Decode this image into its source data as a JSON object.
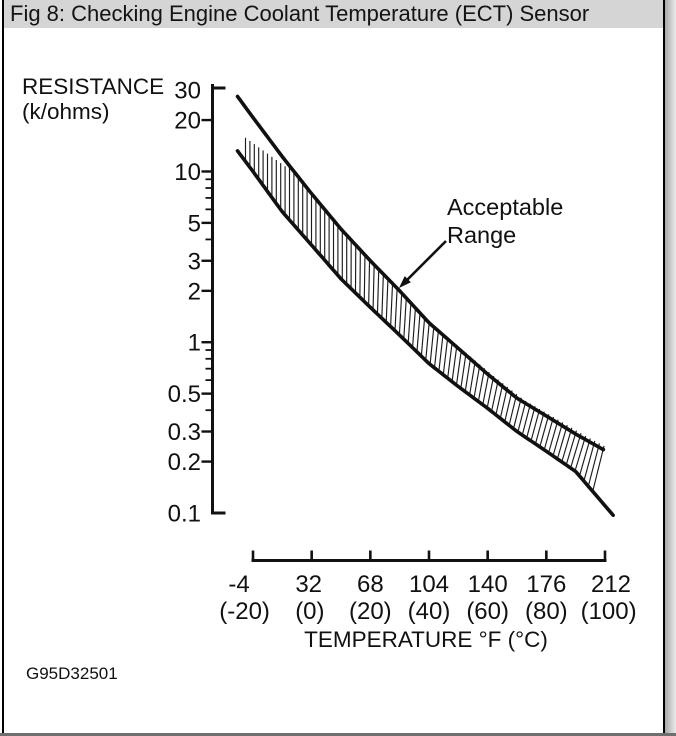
{
  "window": {
    "title": "Fig 8: Checking Engine Coolant Temperature (ECT) Sensor"
  },
  "figure_code": "G95D32501",
  "colors": {
    "ink": "#111111",
    "title_bar_bg": "#d5d5d5"
  },
  "chart": {
    "y_axis_label_line1": "RESISTANCE",
    "y_axis_label_line2": "(k/ohms)",
    "x_axis_label": "TEMPERATURE °F (°C)",
    "annotation": {
      "line1": "Acceptable",
      "line2": "Range"
    }
  },
  "chart_data": {
    "type": "area",
    "title": "ECT sensor resistance vs temperature (acceptable range band)",
    "xlabel": "TEMPERATURE °F (°C)",
    "ylabel": "RESISTANCE (k/ohms)",
    "x_scale": "linear",
    "y_scale": "log",
    "xlim_f": [
      -4,
      212
    ],
    "ylim": [
      0.1,
      30
    ],
    "grid": false,
    "x_tick_values_f": [
      -4,
      32,
      68,
      104,
      140,
      176,
      212
    ],
    "x_tick_labels_f": [
      "-4",
      "32",
      "68",
      "104",
      "140",
      "176",
      "212"
    ],
    "x_tick_labels_c": [
      "(-20)",
      "(0)",
      "(20)",
      "(40)",
      "(60)",
      "(80)",
      "(100)"
    ],
    "y_tick_values": [
      30,
      20,
      10,
      5,
      3,
      2,
      1,
      0.5,
      0.3,
      0.2,
      0.1
    ],
    "y_tick_labels": [
      "30",
      "20",
      "10",
      "5",
      "3",
      "2",
      "1",
      "0.5",
      "0.3",
      "0.2",
      "0.1"
    ],
    "y_minor_tick_values": [
      9,
      8,
      7,
      6,
      4,
      0.9,
      0.8,
      0.7,
      0.6,
      0.4
    ],
    "band_label": "Acceptable Range",
    "series": [
      {
        "name": "upper_limit",
        "units": "k/ohms",
        "values_at_x_ticks": [
          20,
          7.4,
          3.0,
          1.3,
          0.65,
          0.37,
          0.24
        ],
        "curve_points_f_kohm": [
          [
            -13.5,
            27.5
          ],
          [
            -4,
            20.7
          ],
          [
            14,
            12.2
          ],
          [
            32,
            7.4
          ],
          [
            50,
            4.6
          ],
          [
            68,
            3.0
          ],
          [
            86,
            2.0
          ],
          [
            104,
            1.3
          ],
          [
            122,
            0.92
          ],
          [
            140,
            0.65
          ],
          [
            158,
            0.47
          ],
          [
            176,
            0.37
          ],
          [
            194,
            0.29
          ],
          [
            211,
            0.235
          ]
        ]
      },
      {
        "name": "lower_limit",
        "units": "k/ohms",
        "values_at_x_ticks": [
          10,
          3.7,
          1.6,
          0.75,
          0.41,
          0.23,
          0.1
        ],
        "curve_points_f_kohm": [
          [
            -13.5,
            13.2
          ],
          [
            -4,
            10.0
          ],
          [
            14,
            5.8
          ],
          [
            32,
            3.7
          ],
          [
            50,
            2.35
          ],
          [
            68,
            1.6
          ],
          [
            86,
            1.1
          ],
          [
            104,
            0.75
          ],
          [
            122,
            0.55
          ],
          [
            140,
            0.41
          ],
          [
            158,
            0.3
          ],
          [
            176,
            0.23
          ],
          [
            194,
            0.175
          ],
          [
            217,
            0.097
          ]
        ]
      }
    ]
  }
}
